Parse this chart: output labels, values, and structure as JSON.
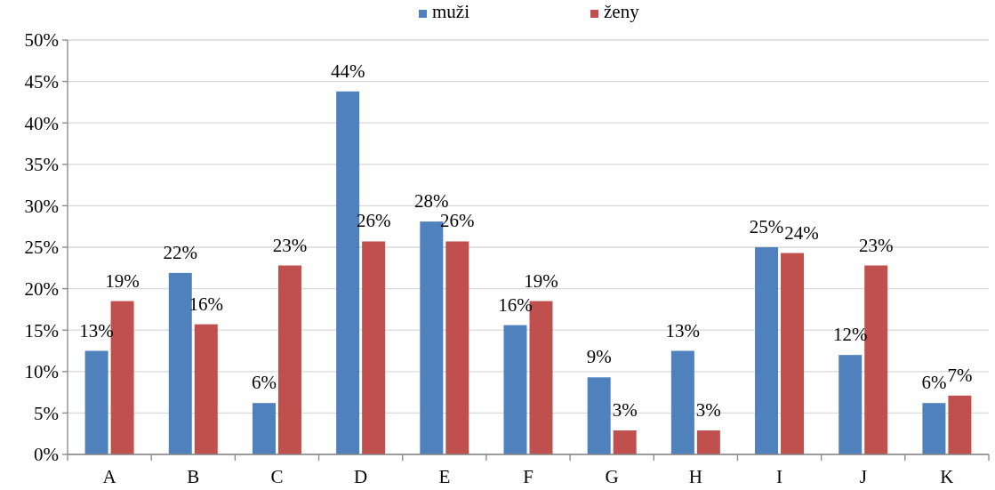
{
  "chart_data": {
    "type": "bar",
    "categories": [
      "A",
      "B",
      "C",
      "D",
      "E",
      "F",
      "G",
      "H",
      "I",
      "J",
      "K"
    ],
    "series": [
      {
        "name": "muži",
        "color": "#4f81bd",
        "values": [
          12.5,
          21.9,
          6.2,
          43.8,
          28.1,
          15.6,
          9.3,
          12.5,
          25.0,
          12.0,
          6.2
        ],
        "value_labels": [
          "13%",
          "22%",
          "6%",
          "44%",
          "28%",
          "16%",
          "9%",
          "13%",
          "25%",
          "12%",
          "6%"
        ]
      },
      {
        "name": "ženy",
        "color": "#c0504d",
        "values": [
          18.5,
          15.7,
          22.8,
          25.7,
          25.7,
          18.5,
          2.9,
          2.9,
          24.3,
          22.8,
          7.1
        ],
        "value_labels": [
          "19%",
          "16%",
          "23%",
          "26%",
          "26%",
          "19%",
          "3%",
          "3%",
          "24%",
          "23%",
          "7%"
        ]
      }
    ],
    "ylim": [
      0,
      50
    ],
    "yticks": [
      {
        "value": 0,
        "label": "0%"
      },
      {
        "value": 5,
        "label": "5%"
      },
      {
        "value": 10,
        "label": "10%"
      },
      {
        "value": 15,
        "label": "15%"
      },
      {
        "value": 20,
        "label": "20%"
      },
      {
        "value": 25,
        "label": "25%"
      },
      {
        "value": 30,
        "label": "30%"
      },
      {
        "value": 35,
        "label": "35%"
      },
      {
        "value": 40,
        "label": "40%"
      },
      {
        "value": 45,
        "label": "45%"
      },
      {
        "value": 50,
        "label": "50%"
      }
    ],
    "grid": "y",
    "legend": "top"
  }
}
